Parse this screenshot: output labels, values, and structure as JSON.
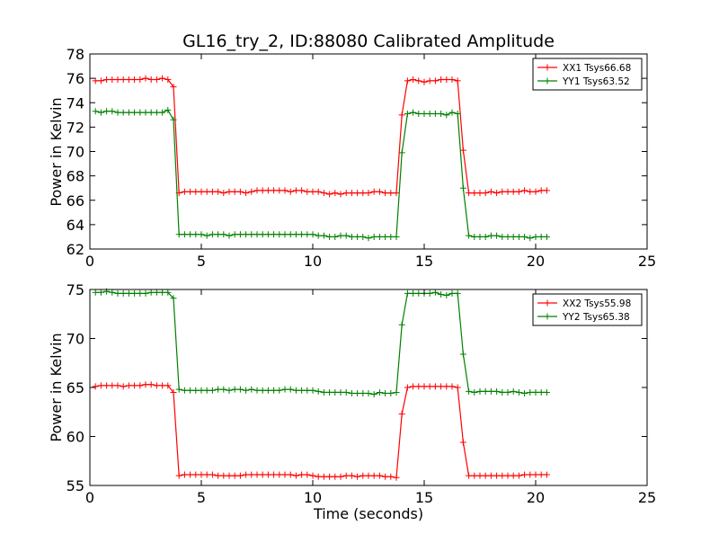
{
  "figure": {
    "title": "GL16_try_2, ID:88080 Calibrated Amplitude"
  },
  "chart_data": [
    {
      "type": "line",
      "title": "GL16_try_2, ID:88080 Calibrated Amplitude",
      "xlabel": "",
      "ylabel": "Power in Kelvin",
      "xlim": [
        0,
        25
      ],
      "ylim": [
        62,
        78
      ],
      "xticks": [
        0,
        5,
        10,
        15,
        20,
        25
      ],
      "yticks": [
        62,
        64,
        66,
        68,
        70,
        72,
        74,
        76,
        78
      ],
      "grid": false,
      "legend": "top-right",
      "x": [
        0.25,
        0.5,
        0.75,
        1.0,
        1.25,
        1.5,
        1.75,
        2.0,
        2.25,
        2.5,
        2.75,
        3.0,
        3.25,
        3.5,
        3.75,
        4.0,
        4.25,
        4.5,
        4.75,
        5.0,
        5.25,
        5.5,
        5.75,
        6.0,
        6.25,
        6.5,
        6.75,
        7.0,
        7.25,
        7.5,
        7.75,
        8.0,
        8.25,
        8.5,
        8.75,
        9.0,
        9.25,
        9.5,
        9.75,
        10.0,
        10.25,
        10.5,
        10.75,
        11.0,
        11.25,
        11.5,
        11.75,
        12.0,
        12.25,
        12.5,
        12.75,
        13.0,
        13.25,
        13.5,
        13.75,
        14.0,
        14.25,
        14.5,
        14.75,
        15.0,
        15.25,
        15.5,
        15.75,
        16.0,
        16.25,
        16.5,
        16.75,
        17.0,
        17.25,
        17.5,
        17.75,
        18.0,
        18.25,
        18.5,
        18.75,
        19.0,
        19.25,
        19.5,
        19.75,
        20.0,
        20.25,
        20.5
      ],
      "series": [
        {
          "name": "XX1 Tsys66.68",
          "color": "#ff0000",
          "values": [
            75.8,
            75.8,
            75.9,
            75.9,
            75.9,
            75.9,
            75.9,
            75.9,
            75.9,
            76.0,
            75.9,
            75.9,
            76.0,
            75.9,
            75.3,
            66.6,
            66.7,
            66.7,
            66.7,
            66.7,
            66.7,
            66.7,
            66.7,
            66.6,
            66.7,
            66.7,
            66.7,
            66.6,
            66.7,
            66.8,
            66.8,
            66.8,
            66.8,
            66.8,
            66.8,
            66.7,
            66.8,
            66.8,
            66.7,
            66.7,
            66.7,
            66.6,
            66.5,
            66.6,
            66.5,
            66.6,
            66.6,
            66.6,
            66.6,
            66.6,
            66.7,
            66.7,
            66.6,
            66.6,
            66.6,
            73.0,
            75.8,
            75.9,
            75.8,
            75.7,
            75.8,
            75.8,
            75.9,
            75.9,
            75.9,
            75.8,
            70.1,
            66.6,
            66.6,
            66.6,
            66.6,
            66.7,
            66.6,
            66.7,
            66.7,
            66.7,
            66.7,
            66.8,
            66.7,
            66.7,
            66.8,
            66.8
          ]
        },
        {
          "name": "YY1 Tsys63.52",
          "color": "#008000",
          "values": [
            73.3,
            73.2,
            73.3,
            73.3,
            73.2,
            73.2,
            73.2,
            73.2,
            73.2,
            73.2,
            73.2,
            73.2,
            73.2,
            73.4,
            72.6,
            63.2,
            63.2,
            63.2,
            63.2,
            63.2,
            63.1,
            63.2,
            63.2,
            63.2,
            63.1,
            63.2,
            63.2,
            63.2,
            63.2,
            63.2,
            63.2,
            63.2,
            63.2,
            63.2,
            63.2,
            63.2,
            63.2,
            63.2,
            63.2,
            63.2,
            63.1,
            63.1,
            63.0,
            63.0,
            63.1,
            63.1,
            63.0,
            63.0,
            63.0,
            62.9,
            63.0,
            63.0,
            63.0,
            63.0,
            63.0,
            69.9,
            73.1,
            73.2,
            73.1,
            73.1,
            73.1,
            73.1,
            73.1,
            73.0,
            73.2,
            73.1,
            67.0,
            63.1,
            63.0,
            63.0,
            63.0,
            63.1,
            63.1,
            63.0,
            63.0,
            63.0,
            63.0,
            63.0,
            62.9,
            63.0,
            63.0,
            63.0
          ]
        }
      ]
    },
    {
      "type": "line",
      "title": "",
      "xlabel": "Time (seconds)",
      "ylabel": "Power in Kelvin",
      "xlim": [
        0,
        25
      ],
      "ylim": [
        55,
        75
      ],
      "xticks": [
        0,
        5,
        10,
        15,
        20,
        25
      ],
      "yticks": [
        55,
        60,
        65,
        70,
        75
      ],
      "grid": false,
      "legend": "top-right",
      "x": [
        0.25,
        0.5,
        0.75,
        1.0,
        1.25,
        1.5,
        1.75,
        2.0,
        2.25,
        2.5,
        2.75,
        3.0,
        3.25,
        3.5,
        3.75,
        4.0,
        4.25,
        4.5,
        4.75,
        5.0,
        5.25,
        5.5,
        5.75,
        6.0,
        6.25,
        6.5,
        6.75,
        7.0,
        7.25,
        7.5,
        7.75,
        8.0,
        8.25,
        8.5,
        8.75,
        9.0,
        9.25,
        9.5,
        9.75,
        10.0,
        10.25,
        10.5,
        10.75,
        11.0,
        11.25,
        11.5,
        11.75,
        12.0,
        12.25,
        12.5,
        12.75,
        13.0,
        13.25,
        13.5,
        13.75,
        14.0,
        14.25,
        14.5,
        14.75,
        15.0,
        15.25,
        15.5,
        15.75,
        16.0,
        16.25,
        16.5,
        16.75,
        17.0,
        17.25,
        17.5,
        17.75,
        18.0,
        18.25,
        18.5,
        18.75,
        19.0,
        19.25,
        19.5,
        19.75,
        20.0,
        20.25,
        20.5
      ],
      "series": [
        {
          "name": "XX2 Tsys55.98",
          "color": "#ff0000",
          "values": [
            65.1,
            65.2,
            65.2,
            65.2,
            65.2,
            65.1,
            65.2,
            65.2,
            65.2,
            65.3,
            65.3,
            65.2,
            65.2,
            65.2,
            64.5,
            56.0,
            56.1,
            56.1,
            56.1,
            56.1,
            56.1,
            56.1,
            56.0,
            56.0,
            56.0,
            56.0,
            56.0,
            56.1,
            56.1,
            56.1,
            56.1,
            56.1,
            56.1,
            56.1,
            56.1,
            56.1,
            56.0,
            56.1,
            56.1,
            56.0,
            55.9,
            55.9,
            55.9,
            55.9,
            55.9,
            56.0,
            56.0,
            55.9,
            56.0,
            56.0,
            56.0,
            56.0,
            55.9,
            55.9,
            55.8,
            62.3,
            65.0,
            65.1,
            65.1,
            65.1,
            65.1,
            65.1,
            65.1,
            65.1,
            65.1,
            65.0,
            59.4,
            56.0,
            56.0,
            56.0,
            56.0,
            56.0,
            56.0,
            56.0,
            56.0,
            56.0,
            56.0,
            56.1,
            56.1,
            56.1,
            56.1,
            56.1
          ]
        },
        {
          "name": "YY2 Tsys65.38",
          "color": "#008000",
          "values": [
            74.7,
            74.7,
            74.8,
            74.7,
            74.6,
            74.6,
            74.6,
            74.6,
            74.6,
            74.6,
            74.7,
            74.7,
            74.7,
            74.7,
            74.1,
            64.8,
            64.7,
            64.7,
            64.7,
            64.7,
            64.7,
            64.7,
            64.8,
            64.8,
            64.7,
            64.8,
            64.8,
            64.7,
            64.8,
            64.7,
            64.7,
            64.7,
            64.7,
            64.7,
            64.8,
            64.8,
            64.7,
            64.7,
            64.7,
            64.7,
            64.6,
            64.5,
            64.5,
            64.5,
            64.5,
            64.5,
            64.4,
            64.4,
            64.4,
            64.4,
            64.3,
            64.5,
            64.4,
            64.4,
            64.5,
            71.4,
            74.6,
            74.6,
            74.6,
            74.6,
            74.6,
            74.7,
            74.5,
            74.4,
            74.6,
            74.6,
            68.4,
            64.6,
            64.5,
            64.6,
            64.6,
            64.6,
            64.6,
            64.5,
            64.5,
            64.6,
            64.5,
            64.4,
            64.5,
            64.5,
            64.5,
            64.5
          ]
        }
      ]
    }
  ]
}
